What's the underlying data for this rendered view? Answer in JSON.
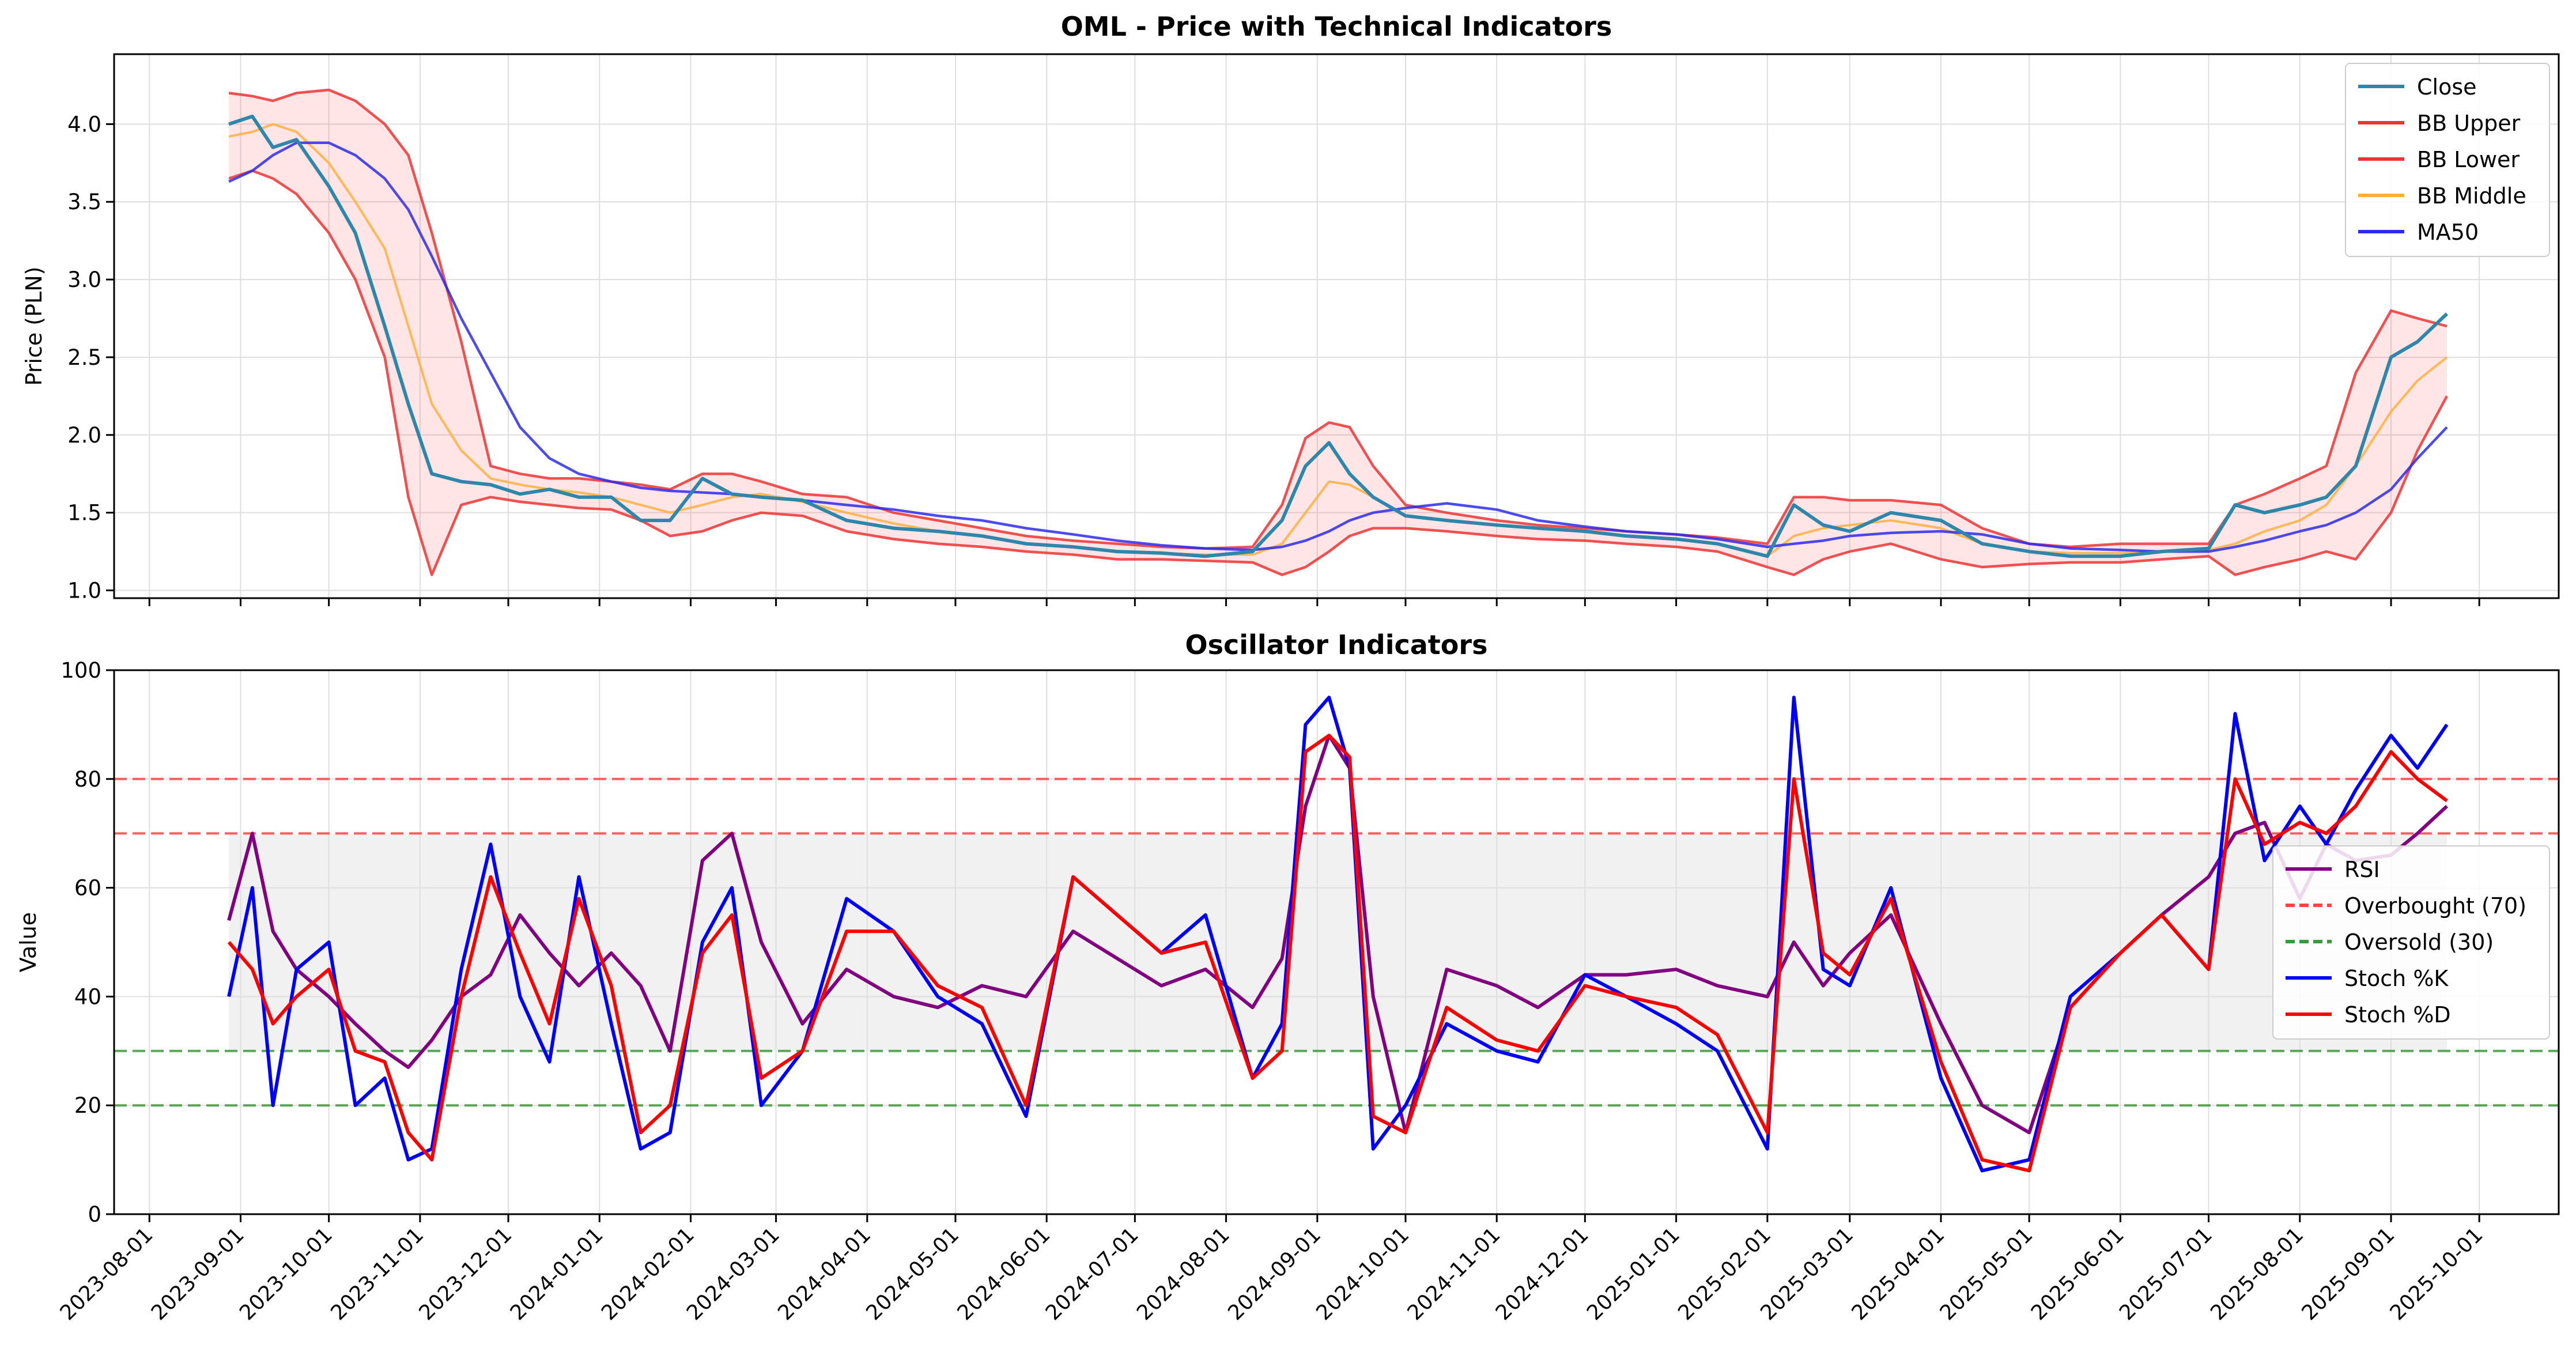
{
  "chart_data": [
    {
      "type": "line",
      "title": "OML - Price with Technical Indicators",
      "xlabel": "",
      "ylabel": "Price (PLN)",
      "ylim": [
        0.95,
        4.45
      ],
      "yticks": [
        "1.0",
        "1.5",
        "2.0",
        "2.5",
        "3.0",
        "3.5",
        "4.0"
      ],
      "xlim": [
        "2023-07-20",
        "2025-10-28"
      ],
      "grid": true,
      "legend_position": "top-right",
      "band_fill": "between BB Upper and BB Lower",
      "x": [
        "2023-08-28",
        "2023-09-05",
        "2023-09-12",
        "2023-09-20",
        "2023-10-01",
        "2023-10-10",
        "2023-10-20",
        "2023-10-28",
        "2023-11-05",
        "2023-11-15",
        "2023-11-25",
        "2023-12-05",
        "2023-12-15",
        "2023-12-25",
        "2024-01-05",
        "2024-01-15",
        "2024-01-25",
        "2024-02-05",
        "2024-02-15",
        "2024-02-25",
        "2024-03-10",
        "2024-03-25",
        "2024-04-10",
        "2024-04-25",
        "2024-05-10",
        "2024-05-25",
        "2024-06-10",
        "2024-06-25",
        "2024-07-10",
        "2024-07-25",
        "2024-08-10",
        "2024-08-20",
        "2024-08-28",
        "2024-09-05",
        "2024-09-12",
        "2024-09-20",
        "2024-10-01",
        "2024-10-15",
        "2024-11-01",
        "2024-11-15",
        "2024-12-01",
        "2024-12-15",
        "2025-01-01",
        "2025-01-15",
        "2025-02-01",
        "2025-02-10",
        "2025-02-20",
        "2025-03-01",
        "2025-03-15",
        "2025-04-01",
        "2025-04-15",
        "2025-05-01",
        "2025-05-15",
        "2025-06-01",
        "2025-06-15",
        "2025-07-01",
        "2025-07-10",
        "2025-07-20",
        "2025-08-01",
        "2025-08-10",
        "2025-08-20",
        "2025-09-01",
        "2025-09-10",
        "2025-09-20"
      ],
      "series": [
        {
          "name": "Close",
          "color": "#2e86ab",
          "values": [
            4.0,
            4.05,
            3.85,
            3.9,
            3.6,
            3.3,
            2.7,
            2.2,
            1.75,
            1.7,
            1.68,
            1.62,
            1.65,
            1.6,
            1.6,
            1.45,
            1.45,
            1.72,
            1.62,
            1.6,
            1.58,
            1.45,
            1.4,
            1.38,
            1.35,
            1.3,
            1.28,
            1.25,
            1.24,
            1.22,
            1.25,
            1.45,
            1.8,
            1.95,
            1.75,
            1.6,
            1.48,
            1.45,
            1.42,
            1.4,
            1.38,
            1.35,
            1.33,
            1.3,
            1.22,
            1.55,
            1.42,
            1.38,
            1.5,
            1.45,
            1.3,
            1.25,
            1.22,
            1.22,
            1.25,
            1.27,
            1.55,
            1.5,
            1.55,
            1.6,
            1.8,
            2.5,
            2.6,
            2.78
          ]
        },
        {
          "name": "BB Upper",
          "color": "#ee3333",
          "values": [
            4.2,
            4.18,
            4.15,
            4.2,
            4.22,
            4.15,
            4.0,
            3.8,
            3.3,
            2.6,
            1.8,
            1.75,
            1.72,
            1.72,
            1.7,
            1.68,
            1.65,
            1.75,
            1.75,
            1.7,
            1.62,
            1.6,
            1.5,
            1.45,
            1.4,
            1.35,
            1.32,
            1.3,
            1.28,
            1.27,
            1.28,
            1.55,
            1.98,
            2.08,
            2.05,
            1.8,
            1.55,
            1.5,
            1.45,
            1.42,
            1.4,
            1.38,
            1.36,
            1.34,
            1.3,
            1.6,
            1.6,
            1.58,
            1.58,
            1.55,
            1.4,
            1.3,
            1.28,
            1.3,
            1.3,
            1.3,
            1.55,
            1.62,
            1.72,
            1.8,
            2.4,
            2.8,
            2.75,
            2.7
          ]
        },
        {
          "name": "BB Lower",
          "color": "#ee3333",
          "values": [
            3.65,
            3.7,
            3.65,
            3.55,
            3.3,
            3.0,
            2.5,
            1.6,
            1.1,
            1.55,
            1.6,
            1.57,
            1.55,
            1.53,
            1.52,
            1.45,
            1.35,
            1.38,
            1.45,
            1.5,
            1.48,
            1.38,
            1.33,
            1.3,
            1.28,
            1.25,
            1.23,
            1.2,
            1.2,
            1.19,
            1.18,
            1.1,
            1.15,
            1.25,
            1.35,
            1.4,
            1.4,
            1.38,
            1.35,
            1.33,
            1.32,
            1.3,
            1.28,
            1.25,
            1.15,
            1.1,
            1.2,
            1.25,
            1.3,
            1.2,
            1.15,
            1.17,
            1.18,
            1.18,
            1.2,
            1.22,
            1.1,
            1.15,
            1.2,
            1.25,
            1.2,
            1.5,
            1.9,
            2.25
          ]
        },
        {
          "name": "BB Middle",
          "color": "#ffb03b",
          "values": [
            3.92,
            3.95,
            4.0,
            3.95,
            3.75,
            3.5,
            3.2,
            2.7,
            2.2,
            1.9,
            1.72,
            1.68,
            1.65,
            1.63,
            1.6,
            1.55,
            1.5,
            1.55,
            1.6,
            1.62,
            1.57,
            1.5,
            1.43,
            1.38,
            1.35,
            1.3,
            1.28,
            1.25,
            1.24,
            1.23,
            1.23,
            1.3,
            1.5,
            1.7,
            1.68,
            1.6,
            1.48,
            1.45,
            1.42,
            1.4,
            1.38,
            1.35,
            1.33,
            1.3,
            1.22,
            1.35,
            1.4,
            1.42,
            1.45,
            1.4,
            1.3,
            1.25,
            1.24,
            1.24,
            1.25,
            1.26,
            1.3,
            1.38,
            1.45,
            1.55,
            1.8,
            2.15,
            2.35,
            2.5
          ]
        },
        {
          "name": "MA50",
          "color": "#2b2bee",
          "values": [
            3.63,
            3.7,
            3.8,
            3.88,
            3.88,
            3.8,
            3.65,
            3.45,
            3.15,
            2.75,
            2.4,
            2.05,
            1.85,
            1.75,
            1.7,
            1.66,
            1.64,
            1.63,
            1.62,
            1.6,
            1.58,
            1.55,
            1.52,
            1.48,
            1.45,
            1.4,
            1.36,
            1.32,
            1.29,
            1.27,
            1.26,
            1.28,
            1.32,
            1.38,
            1.45,
            1.5,
            1.53,
            1.56,
            1.52,
            1.45,
            1.41,
            1.38,
            1.36,
            1.33,
            1.28,
            1.3,
            1.32,
            1.35,
            1.37,
            1.38,
            1.36,
            1.3,
            1.27,
            1.26,
            1.25,
            1.25,
            1.28,
            1.32,
            1.38,
            1.42,
            1.5,
            1.65,
            1.85,
            2.05
          ]
        }
      ]
    },
    {
      "type": "line",
      "title": "Oscillator Indicators",
      "xlabel": "",
      "ylabel": "Value",
      "ylim": [
        0,
        100
      ],
      "yticks": [
        "0",
        "20",
        "40",
        "60",
        "80",
        "100"
      ],
      "xlim": [
        "2023-07-20",
        "2025-10-28"
      ],
      "grid": true,
      "legend_position": "center-right",
      "shaded_band": [
        30,
        70
      ],
      "xtick_labels": [
        "2023-08-01",
        "2023-09-01",
        "2023-10-01",
        "2023-11-01",
        "2023-12-01",
        "2024-01-01",
        "2024-02-01",
        "2024-03-01",
        "2024-04-01",
        "2024-05-01",
        "2024-06-01",
        "2024-07-01",
        "2024-08-01",
        "2024-09-01",
        "2024-10-01",
        "2024-11-01",
        "2024-12-01",
        "2025-01-01",
        "2025-02-01",
        "2025-03-01",
        "2025-04-01",
        "2025-05-01",
        "2025-06-01",
        "2025-07-01",
        "2025-08-01",
        "2025-09-01",
        "2025-10-01"
      ],
      "reference_lines": [
        {
          "name": "Overbought (70)",
          "y": 70,
          "color": "#ff4444",
          "style": "dashed"
        },
        {
          "name": "Oversold (30)",
          "y": 30,
          "color": "#3a9a3a",
          "style": "dashed"
        },
        {
          "name": "",
          "y": 80,
          "color": "#ff4444",
          "style": "dashed"
        },
        {
          "name": "",
          "y": 20,
          "color": "#3a9a3a",
          "style": "dashed"
        }
      ],
      "x": [
        "2023-08-28",
        "2023-09-05",
        "2023-09-12",
        "2023-09-20",
        "2023-10-01",
        "2023-10-10",
        "2023-10-20",
        "2023-10-28",
        "2023-11-05",
        "2023-11-15",
        "2023-11-25",
        "2023-12-05",
        "2023-12-15",
        "2023-12-25",
        "2024-01-05",
        "2024-01-15",
        "2024-01-25",
        "2024-02-05",
        "2024-02-15",
        "2024-02-25",
        "2024-03-10",
        "2024-03-25",
        "2024-04-10",
        "2024-04-25",
        "2024-05-10",
        "2024-05-25",
        "2024-06-10",
        "2024-06-25",
        "2024-07-10",
        "2024-07-25",
        "2024-08-10",
        "2024-08-20",
        "2024-08-28",
        "2024-09-05",
        "2024-09-12",
        "2024-09-20",
        "2024-10-01",
        "2024-10-15",
        "2024-11-01",
        "2024-11-15",
        "2024-12-01",
        "2024-12-15",
        "2025-01-01",
        "2025-01-15",
        "2025-02-01",
        "2025-02-10",
        "2025-02-20",
        "2025-03-01",
        "2025-03-15",
        "2025-04-01",
        "2025-04-15",
        "2025-05-01",
        "2025-05-15",
        "2025-06-01",
        "2025-06-15",
        "2025-07-01",
        "2025-07-10",
        "2025-07-20",
        "2025-08-01",
        "2025-08-10",
        "2025-08-20",
        "2025-09-01",
        "2025-09-10",
        "2025-09-20"
      ],
      "series": [
        {
          "name": "RSI",
          "color": "#800080",
          "values": [
            54,
            70,
            52,
            45,
            40,
            35,
            30,
            27,
            32,
            40,
            44,
            55,
            48,
            42,
            48,
            42,
            30,
            65,
            70,
            50,
            35,
            45,
            40,
            38,
            42,
            40,
            52,
            47,
            42,
            45,
            38,
            47,
            75,
            88,
            82,
            40,
            15,
            45,
            42,
            38,
            44,
            44,
            45,
            42,
            40,
            50,
            42,
            48,
            55,
            35,
            20,
            15,
            38,
            48,
            55,
            62,
            70,
            72,
            58,
            68,
            65,
            66,
            70,
            75
          ]
        },
        {
          "name": "Stoch %K",
          "color": "#0000ff",
          "values": [
            40,
            60,
            20,
            45,
            50,
            20,
            25,
            10,
            12,
            45,
            68,
            40,
            28,
            62,
            35,
            12,
            15,
            50,
            60,
            20,
            30,
            58,
            52,
            40,
            35,
            18,
            62,
            55,
            48,
            55,
            25,
            35,
            90,
            95,
            82,
            12,
            20,
            35,
            30,
            28,
            44,
            40,
            35,
            30,
            12,
            95,
            45,
            42,
            60,
            25,
            8,
            10,
            40,
            48,
            55,
            45,
            92,
            65,
            75,
            68,
            78,
            88,
            82,
            90
          ]
        },
        {
          "name": "Stoch %D",
          "color": "#ff0000",
          "values": [
            50,
            45,
            35,
            40,
            45,
            30,
            28,
            15,
            10,
            40,
            62,
            48,
            35,
            58,
            42,
            15,
            20,
            48,
            55,
            25,
            30,
            52,
            52,
            42,
            38,
            20,
            62,
            55,
            48,
            50,
            25,
            30,
            85,
            88,
            84,
            18,
            15,
            38,
            32,
            30,
            42,
            40,
            38,
            33,
            15,
            80,
            48,
            44,
            58,
            28,
            10,
            8,
            38,
            48,
            55,
            45,
            80,
            68,
            72,
            70,
            75,
            85,
            80,
            76
          ]
        }
      ]
    }
  ]
}
